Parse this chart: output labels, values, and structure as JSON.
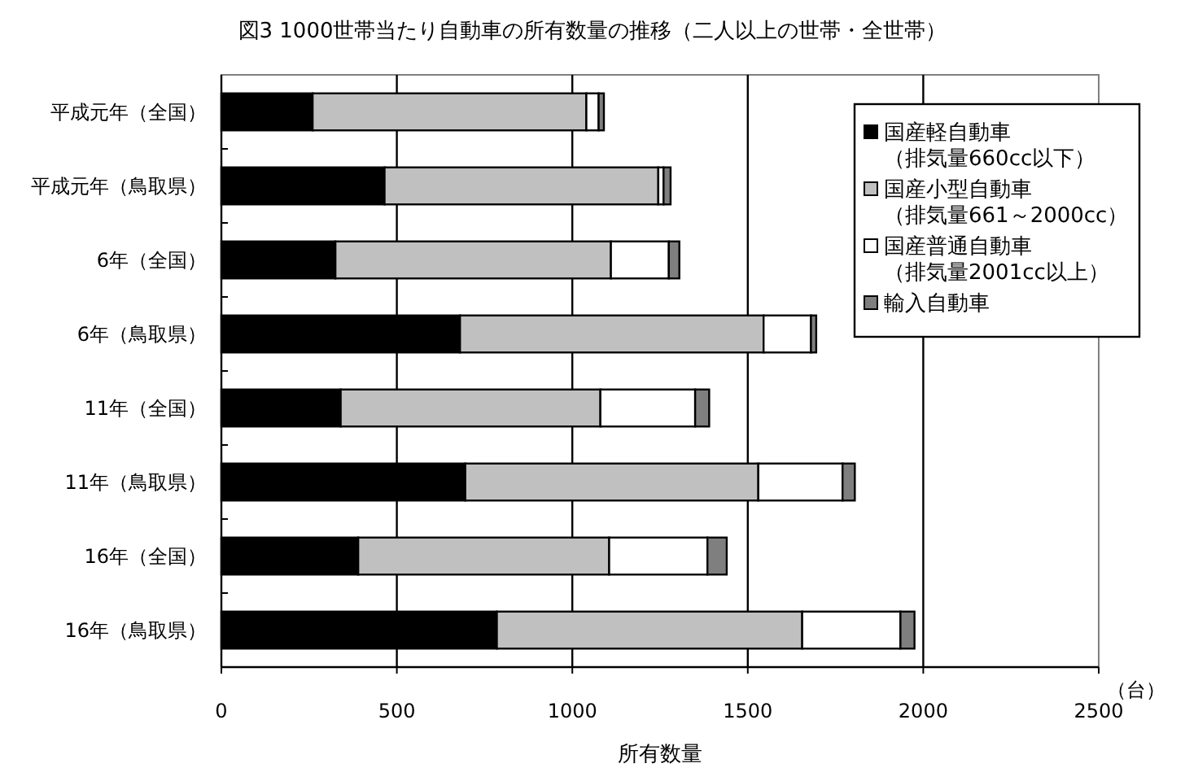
{
  "chart_data": {
    "type": "bar",
    "orientation": "horizontal",
    "stacked": true,
    "title": "図3 1000世帯当たり自動車の所有数量の推移（二人以上の世帯・全世帯）",
    "xlabel": "所有数量",
    "annotations": [
      "（台）"
    ],
    "categories": [
      "平成元年（全国）",
      "平成元年（鳥取県）",
      "6年（全国）",
      "6年（鳥取県）",
      "11年（全国）",
      "11年（鳥取県）",
      "16年（全国）",
      "16年（鳥取県）"
    ],
    "series": [
      {
        "name": "国産軽自動車（排気量660cc以下）",
        "color": "#000000",
        "values": [
          260,
          465,
          325,
          680,
          340,
          695,
          390,
          785
        ]
      },
      {
        "name": "国産小型自動車（排気量661～2000cc）",
        "color": "#c0c0c0",
        "values": [
          780,
          780,
          785,
          865,
          740,
          835,
          715,
          870
        ]
      },
      {
        "name": "国産普通自動車（排気量2001cc以上）",
        "color": "#ffffff",
        "values": [
          35,
          15,
          165,
          135,
          270,
          240,
          280,
          280
        ]
      },
      {
        "name": "輸入自動車",
        "color": "#7f7f7f",
        "values": [
          15,
          20,
          30,
          15,
          40,
          35,
          55,
          40
        ]
      }
    ],
    "xlim": [
      0,
      2500
    ],
    "xticks": [
      0,
      500,
      1000,
      1500,
      2000,
      2500
    ],
    "grid": "x",
    "legend": "top right"
  }
}
